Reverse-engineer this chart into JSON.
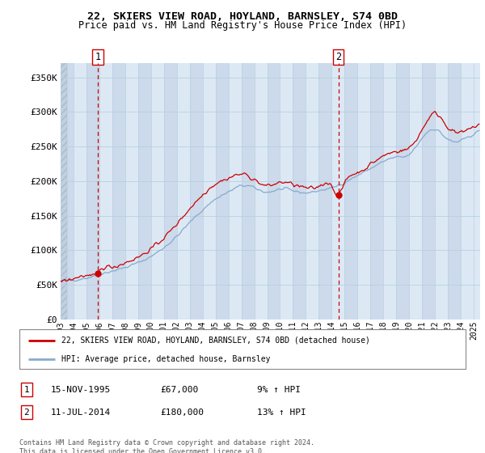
{
  "title": "22, SKIERS VIEW ROAD, HOYLAND, BARNSLEY, S74 0BD",
  "subtitle": "Price paid vs. HM Land Registry's House Price Index (HPI)",
  "ylim": [
    0,
    370000
  ],
  "yticks": [
    0,
    50000,
    100000,
    150000,
    200000,
    250000,
    300000,
    350000
  ],
  "ytick_labels": [
    "£0",
    "£50K",
    "£100K",
    "£150K",
    "£200K",
    "£250K",
    "£300K",
    "£350K"
  ],
  "bg_color": "#dce9f5",
  "hatch_bg_color": "#c8d8ea",
  "grid_color": "#b8cfe0",
  "red_line_color": "#cc0000",
  "blue_line_color": "#88aacc",
  "vline_color": "#cc0000",
  "marker1_date": 1995.88,
  "marker1_y": 67000,
  "marker2_date": 2014.53,
  "marker2_y": 180000,
  "legend_label1": "22, SKIERS VIEW ROAD, HOYLAND, BARNSLEY, S74 0BD (detached house)",
  "legend_label2": "HPI: Average price, detached house, Barnsley",
  "table_row1_num": "1",
  "table_row1_date": "15-NOV-1995",
  "table_row1_price": "£67,000",
  "table_row1_hpi": "9% ↑ HPI",
  "table_row2_num": "2",
  "table_row2_date": "11-JUL-2014",
  "table_row2_price": "£180,000",
  "table_row2_hpi": "13% ↑ HPI",
  "footer": "Contains HM Land Registry data © Crown copyright and database right 2024.\nThis data is licensed under the Open Government Licence v3.0.",
  "xmin": 1993.0,
  "xmax": 2025.5,
  "hatch_end": 1993.5,
  "xtick_years": [
    1993,
    1994,
    1995,
    1996,
    1997,
    1998,
    1999,
    2000,
    2001,
    2002,
    2003,
    2004,
    2005,
    2006,
    2007,
    2008,
    2009,
    2010,
    2011,
    2012,
    2013,
    2014,
    2015,
    2016,
    2017,
    2018,
    2019,
    2020,
    2021,
    2022,
    2023,
    2024,
    2025
  ]
}
